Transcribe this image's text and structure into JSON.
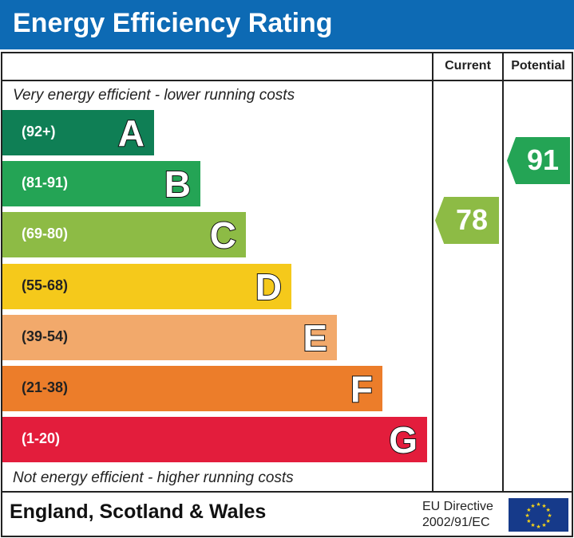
{
  "title": "Energy Efficiency Rating",
  "columns": {
    "current": "Current",
    "potential": "Potential"
  },
  "top_note": "Very energy efficient - lower running costs",
  "bottom_note": "Not energy efficient - higher running costs",
  "footer": {
    "region": "England, Scotland & Wales",
    "directive_line1": "EU Directive",
    "directive_line2": "2002/91/EC",
    "flag_icon": "eu-flag-icon"
  },
  "chart_data": {
    "type": "bar",
    "categories": [
      "A",
      "B",
      "C",
      "D",
      "E",
      "F",
      "G"
    ],
    "ranges": [
      "(92+)",
      "(81-91)",
      "(69-80)",
      "(55-68)",
      "(39-54)",
      "(21-38)",
      "(1-20)"
    ],
    "colors": [
      "#0f7f55",
      "#24a455",
      "#8dbb45",
      "#f5c91b",
      "#f2a96b",
      "#ec7d2a",
      "#e31d3c"
    ],
    "current": {
      "value": "78",
      "band": "C"
    },
    "potential": {
      "value": "91",
      "band": "B"
    }
  }
}
